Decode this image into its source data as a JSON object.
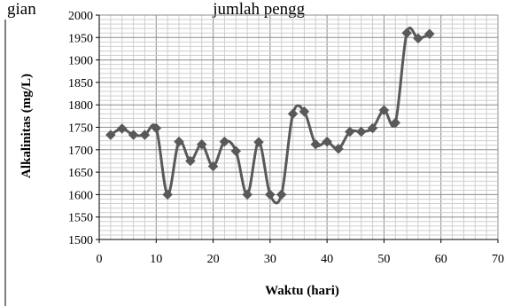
{
  "caption_text": "gian                                          jumlah pengg",
  "chart_data": {
    "type": "line",
    "title": "",
    "xlabel": "Waktu (hari)",
    "ylabel": "Alkalinitas (mg/L)",
    "xlim": [
      0,
      70
    ],
    "ylim": [
      1500,
      2000
    ],
    "x_ticks": [
      "0",
      "10",
      "20",
      "30",
      "40",
      "50",
      "60",
      "70"
    ],
    "y_ticks": [
      "1500",
      "1550",
      "1600",
      "1650",
      "1700",
      "1750",
      "1800",
      "1850",
      "1900",
      "1950",
      "2000"
    ],
    "grid": true,
    "legend": "none",
    "marker": "diamond",
    "line_color": "#595959",
    "marker_color": "#595959",
    "series": [
      {
        "x": [
          2,
          4,
          6,
          8,
          10,
          12,
          14,
          16,
          18,
          20,
          22,
          24,
          26,
          28,
          30,
          32,
          34,
          36,
          38,
          40,
          42,
          44,
          46,
          48,
          50,
          52,
          54,
          56,
          58
        ],
        "values": [
          1733,
          1747,
          1733,
          1733,
          1748,
          1600,
          1718,
          1675,
          1712,
          1663,
          1718,
          1697,
          1600,
          1717,
          1600,
          1600,
          1780,
          1785,
          1712,
          1718,
          1702,
          1740,
          1740,
          1748,
          1788,
          1760,
          1960,
          1948,
          1958
        ]
      }
    ]
  }
}
